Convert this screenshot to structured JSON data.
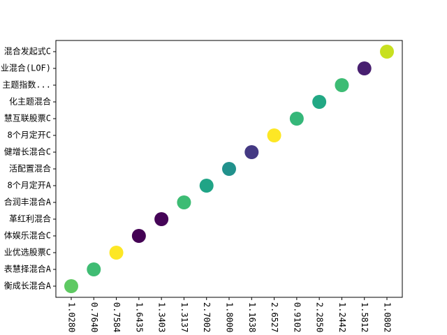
{
  "chart_data": {
    "type": "scatter",
    "x": [
      "1.0280",
      "0.7640",
      "0.7584",
      "1.6435",
      "1.3403",
      "1.3137",
      "2.7002",
      "1.8000",
      "1.1638",
      "2.6527",
      "0.9102",
      "2.2850",
      "1.2442",
      "1.5812",
      "1.0802"
    ],
    "y": [
      "衡成长混合A",
      "表慧择混合A",
      "业优选股票C",
      "体娱乐混合C",
      "革红利混合",
      "合润丰混合A",
      "8个月定开A",
      "活配置混合",
      "健增长混合C",
      "8个月定开C",
      "慧互联股票C",
      "化主题混合",
      "主题指数...",
      "业混合(LOF)",
      "混合发起式C"
    ],
    "colors": [
      "#5ec962",
      "#3fbc73",
      "#fde725",
      "#440154",
      "#450457",
      "#3dbc74",
      "#20a486",
      "#21918c",
      "#443983",
      "#fde725",
      "#35b779",
      "#22a884",
      "#3dbc74",
      "#481f70",
      "#c8e020"
    ]
  }
}
